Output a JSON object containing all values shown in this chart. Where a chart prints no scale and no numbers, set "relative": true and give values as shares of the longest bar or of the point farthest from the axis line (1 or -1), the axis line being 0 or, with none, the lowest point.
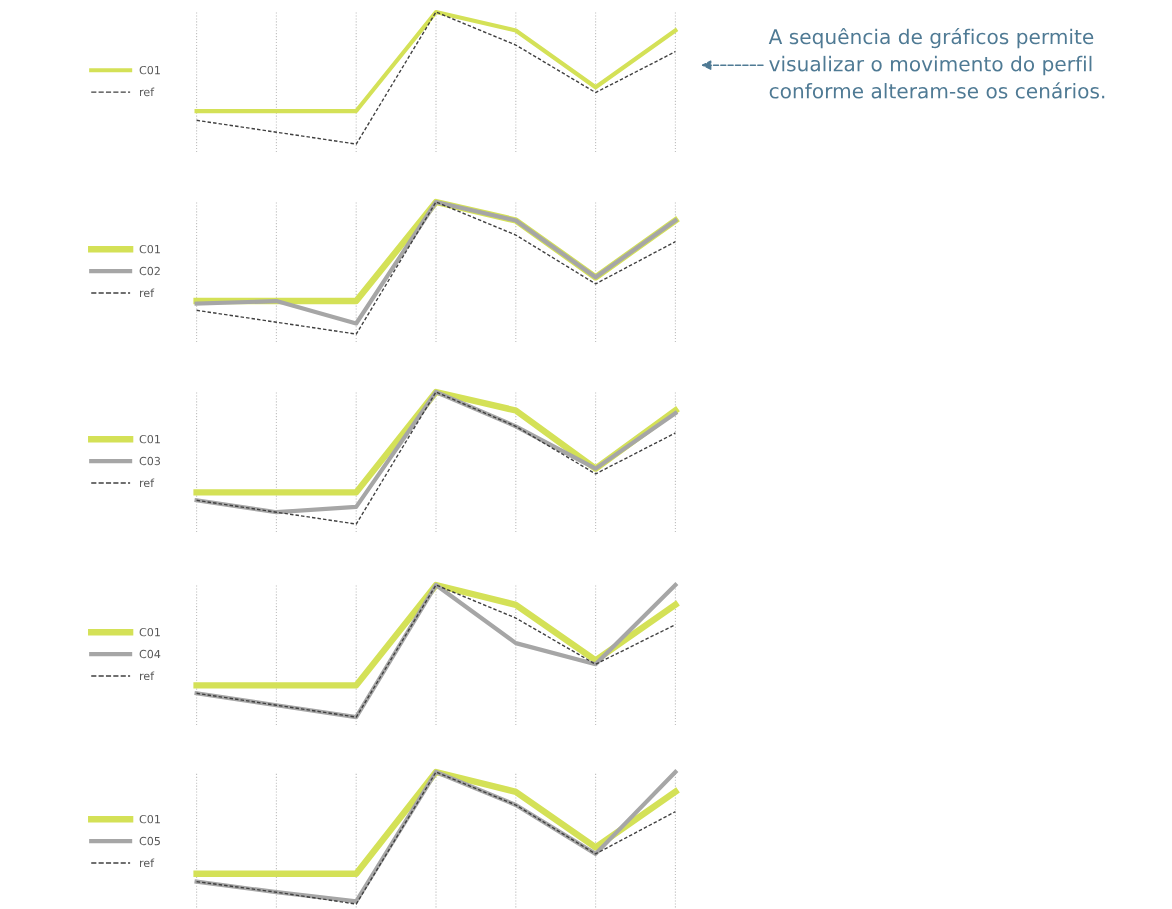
{
  "chart_data": [
    {
      "type": "line",
      "relative": true,
      "categories": [
        null,
        null,
        null,
        null,
        null,
        null,
        null
      ],
      "grid": "x",
      "legend": "left",
      "marker": "none",
      "series": [
        {
          "name": "C01",
          "color": "#d4e157",
          "line_style": "solid",
          "values": [
            0.25,
            0.25,
            0.25,
            1,
            0.86,
            0.43,
            0.86
          ]
        },
        {
          "name": "ref",
          "color": "#404040",
          "line_style": "dashed",
          "values": [
            0.18,
            0.09,
            0,
            1,
            0.75,
            0.39,
            0.7
          ]
        }
      ],
      "annotations": [
        "A sequência de gráficos permite\nvisualizar o movimento do perfil\nconforme alteram-se os cenários."
      ]
    },
    {
      "type": "line",
      "relative": true,
      "categories": [
        null,
        null,
        null,
        null,
        null,
        null,
        null
      ],
      "grid": "x",
      "legend": "left",
      "marker": "none",
      "series": [
        {
          "name": "C01",
          "color": "#d4e157",
          "line_style": "solid",
          "values": [
            0.25,
            0.25,
            0.25,
            1,
            0.86,
            0.43,
            0.86
          ]
        },
        {
          "name": "C02",
          "color": "#a6a6a6",
          "line_style": "solid",
          "values": [
            0.23,
            0.25,
            0.08,
            1,
            0.86,
            0.43,
            0.86
          ]
        },
        {
          "name": "ref",
          "color": "#404040",
          "line_style": "dashed",
          "values": [
            0.18,
            0.09,
            0,
            1,
            0.75,
            0.38,
            0.7
          ]
        }
      ]
    },
    {
      "type": "line",
      "relative": true,
      "categories": [
        null,
        null,
        null,
        null,
        null,
        null,
        null
      ],
      "grid": "x",
      "legend": "left",
      "marker": "none",
      "series": [
        {
          "name": "C01",
          "color": "#d4e157",
          "line_style": "solid",
          "values": [
            0.24,
            0.24,
            0.24,
            1,
            0.86,
            0.42,
            0.86
          ]
        },
        {
          "name": "C03",
          "color": "#a6a6a6",
          "line_style": "solid",
          "values": [
            0.18,
            0.09,
            0.13,
            1,
            0.74,
            0.42,
            0.84
          ]
        },
        {
          "name": "ref",
          "color": "#404040",
          "line_style": "dashed",
          "values": [
            0.18,
            0.09,
            0,
            1,
            0.74,
            0.38,
            0.69
          ]
        }
      ]
    },
    {
      "type": "line",
      "relative": true,
      "categories": [
        null,
        null,
        null,
        null,
        null,
        null,
        null
      ],
      "grid": "x",
      "legend": "left",
      "marker": "none",
      "series": [
        {
          "name": "C01",
          "color": "#d4e157",
          "line_style": "solid",
          "values": [
            0.24,
            0.24,
            0.24,
            1,
            0.85,
            0.43,
            0.85
          ]
        },
        {
          "name": "C04",
          "color": "#a6a6a6",
          "line_style": "solid",
          "values": [
            0.18,
            0.09,
            0,
            1,
            0.56,
            0.4,
            1
          ]
        },
        {
          "name": "ref",
          "color": "#404040",
          "line_style": "dashed",
          "values": [
            0.18,
            0.09,
            0,
            1,
            0.75,
            0.4,
            0.7
          ]
        }
      ]
    },
    {
      "type": "line",
      "relative": true,
      "categories": [
        null,
        null,
        null,
        null,
        null,
        null,
        null
      ],
      "grid": "x",
      "legend": "left",
      "marker": "none",
      "series": [
        {
          "name": "C01",
          "color": "#d4e157",
          "line_style": "solid",
          "values": [
            0.23,
            0.23,
            0.23,
            1,
            0.85,
            0.43,
            0.85
          ]
        },
        {
          "name": "C05",
          "color": "#a6a6a6",
          "line_style": "solid",
          "values": [
            0.17,
            0.09,
            0.02,
            1,
            0.75,
            0.38,
            1
          ]
        },
        {
          "name": "ref",
          "color": "#404040",
          "line_style": "dashed",
          "values": [
            0.17,
            0.09,
            0,
            1,
            0.75,
            0.38,
            0.7
          ]
        }
      ]
    }
  ]
}
